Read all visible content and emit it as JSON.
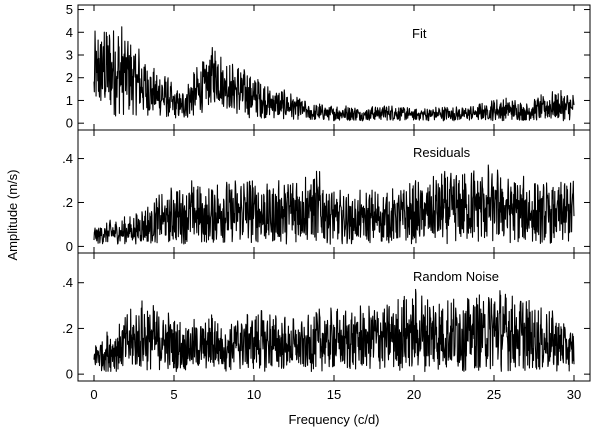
{
  "chart_data": {
    "type": "line",
    "layout": "three stacked panels sharing one x axis",
    "xlabel": "Frequency (c/d)",
    "ylabel": "Amplitude (m/s)",
    "xlim": [
      -1,
      31
    ],
    "x_ticks": [
      0,
      5,
      10,
      15,
      20,
      25,
      30
    ],
    "x_tick_labels": [
      "0",
      "5",
      "10",
      "15",
      "20",
      "25",
      "30"
    ],
    "grid": false,
    "line_color": "#000000",
    "panels": [
      {
        "label": "Fit",
        "ylim": [
          -0.3,
          5.2
        ],
        "y_ticks": [
          0,
          1,
          2,
          3,
          4,
          5
        ],
        "y_tick_labels": [
          "0",
          "1",
          "2",
          "3",
          "4",
          "5"
        ],
        "x": [
          0,
          0.5,
          1,
          1.5,
          2,
          2.5,
          3,
          3.5,
          4,
          4.5,
          5,
          5.5,
          6,
          6.5,
          7,
          7.5,
          8,
          8.5,
          9,
          9.5,
          10,
          10.5,
          11,
          11.5,
          12,
          12.5,
          13,
          13.5,
          14,
          15,
          16,
          17,
          18,
          19,
          20,
          21,
          22,
          23,
          24,
          25,
          26,
          27,
          28,
          29,
          30
        ],
        "envelope": [
          4.2,
          4.6,
          4.8,
          4.5,
          4.3,
          4.0,
          3.2,
          2.6,
          2.4,
          2.2,
          1.6,
          1.4,
          2.3,
          2.7,
          3.0,
          3.6,
          3.2,
          2.8,
          2.7,
          2.5,
          2.3,
          2.0,
          1.7,
          1.6,
          1.5,
          1.3,
          1.2,
          0.8,
          0.9,
          0.8,
          0.8,
          0.7,
          0.9,
          0.8,
          0.7,
          0.7,
          0.8,
          0.7,
          0.9,
          1.1,
          1.2,
          0.9,
          1.3,
          1.5,
          1.3
        ],
        "baseline": [
          0.3,
          0.3,
          0.25,
          0.25,
          0.3,
          0.3,
          0.3,
          0.3,
          0.25,
          0.2,
          0.2,
          0.15,
          0.15,
          0.3,
          0.6,
          0.8,
          0.7,
          0.5,
          0.3,
          0.2,
          0.2,
          0.2,
          0.2,
          0.15,
          0.15,
          0.15,
          0.15,
          0.1,
          0.1,
          0.1,
          0.1,
          0.1,
          0.1,
          0.1,
          0.1,
          0.1,
          0.1,
          0.1,
          0.1,
          0.1,
          0.1,
          0.1,
          0.1,
          0.1,
          0.1
        ]
      },
      {
        "label": "Residuals",
        "ylim": [
          -0.03,
          0.53
        ],
        "y_ticks": [
          0,
          0.2,
          0.4
        ],
        "y_tick_labels": [
          "0",
          ".2",
          ".4"
        ],
        "x": [
          0,
          0.5,
          1,
          1.5,
          2,
          2.5,
          3,
          3.5,
          4,
          4.5,
          5,
          5.5,
          6,
          6.5,
          7,
          7.5,
          8,
          8.5,
          9,
          9.5,
          10,
          10.5,
          11,
          11.5,
          12,
          12.5,
          13,
          13.5,
          14,
          15,
          16,
          17,
          18,
          19,
          20,
          21,
          22,
          23,
          24,
          25,
          26,
          27,
          28,
          29,
          30
        ],
        "envelope": [
          0.1,
          0.1,
          0.12,
          0.12,
          0.14,
          0.15,
          0.18,
          0.2,
          0.25,
          0.26,
          0.28,
          0.3,
          0.32,
          0.3,
          0.26,
          0.3,
          0.33,
          0.3,
          0.32,
          0.33,
          0.34,
          0.3,
          0.28,
          0.3,
          0.32,
          0.35,
          0.38,
          0.36,
          0.35,
          0.28,
          0.25,
          0.27,
          0.26,
          0.28,
          0.3,
          0.32,
          0.35,
          0.36,
          0.38,
          0.38,
          0.35,
          0.32,
          0.3,
          0.3,
          0.33
        ],
        "baseline": [
          0.01,
          0.01,
          0.01,
          0.01,
          0.01,
          0.01,
          0.01,
          0.01,
          0.01,
          0.01,
          0.01,
          0.01,
          0.01,
          0.01,
          0.01,
          0.01,
          0.01,
          0.01,
          0.01,
          0.01,
          0.01,
          0.01,
          0.01,
          0.01,
          0.01,
          0.01,
          0.01,
          0.01,
          0.01,
          0.01,
          0.01,
          0.01,
          0.01,
          0.01,
          0.01,
          0.01,
          0.01,
          0.01,
          0.01,
          0.01,
          0.01,
          0.01,
          0.01,
          0.01,
          0.01
        ]
      },
      {
        "label": "Random Noise",
        "ylim": [
          -0.03,
          0.53
        ],
        "y_ticks": [
          0,
          0.2,
          0.4
        ],
        "y_tick_labels": [
          "0",
          ".2",
          ".4"
        ],
        "x": [
          0,
          0.5,
          1,
          1.5,
          2,
          2.5,
          3,
          3.5,
          4,
          4.5,
          5,
          5.5,
          6,
          6.5,
          7,
          7.5,
          8,
          8.5,
          9,
          9.5,
          10,
          10.5,
          11,
          11.5,
          12,
          12.5,
          13,
          13.5,
          14,
          15,
          16,
          17,
          18,
          19,
          20,
          21,
          22,
          23,
          24,
          25,
          26,
          27,
          28,
          29,
          30
        ],
        "envelope": [
          0.15,
          0.18,
          0.2,
          0.24,
          0.28,
          0.3,
          0.34,
          0.33,
          0.3,
          0.3,
          0.26,
          0.24,
          0.25,
          0.25,
          0.26,
          0.28,
          0.25,
          0.26,
          0.28,
          0.3,
          0.3,
          0.3,
          0.28,
          0.27,
          0.26,
          0.25,
          0.25,
          0.27,
          0.3,
          0.3,
          0.3,
          0.32,
          0.33,
          0.35,
          0.38,
          0.36,
          0.35,
          0.36,
          0.38,
          0.4,
          0.38,
          0.35,
          0.3,
          0.28,
          0.2
        ],
        "baseline": [
          0.01,
          0.01,
          0.01,
          0.01,
          0.01,
          0.01,
          0.01,
          0.01,
          0.01,
          0.01,
          0.01,
          0.01,
          0.01,
          0.01,
          0.01,
          0.01,
          0.01,
          0.01,
          0.01,
          0.01,
          0.01,
          0.01,
          0.01,
          0.01,
          0.01,
          0.01,
          0.01,
          0.01,
          0.01,
          0.01,
          0.01,
          0.01,
          0.01,
          0.01,
          0.01,
          0.01,
          0.01,
          0.01,
          0.01,
          0.01,
          0.01,
          0.01,
          0.01,
          0.01,
          0.01
        ]
      }
    ]
  }
}
